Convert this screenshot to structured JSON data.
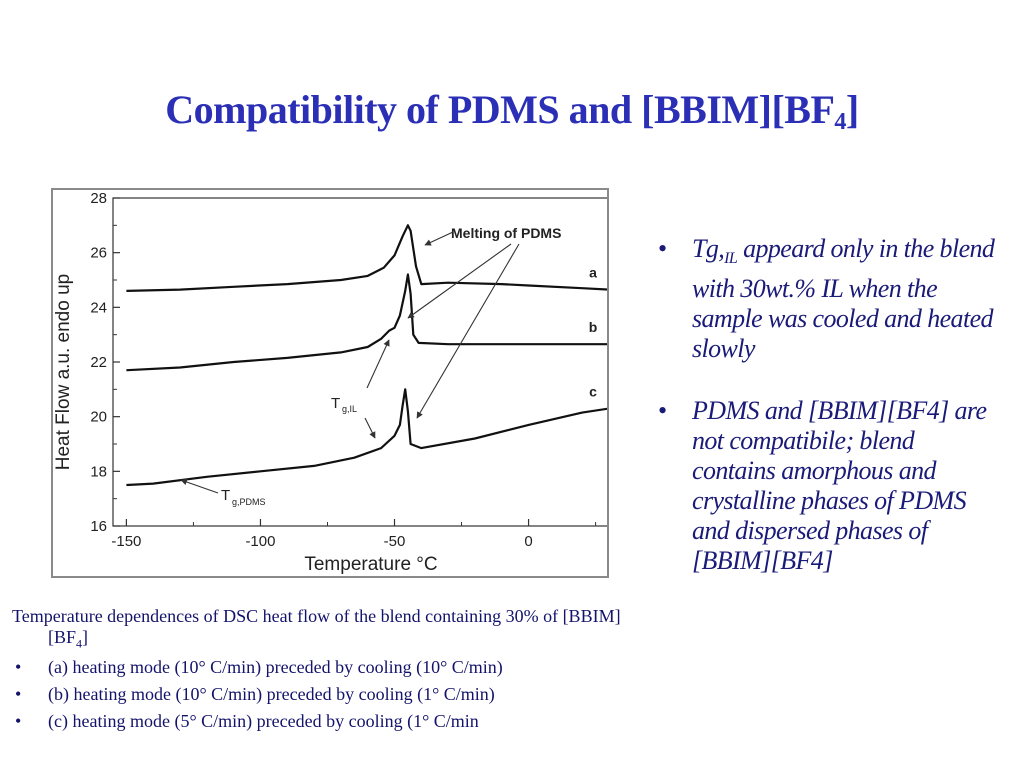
{
  "slide": {
    "title_main": "Compatibility of PDMS and [BBIM][BF",
    "title_sub": "4",
    "title_end": "]"
  },
  "chart_data": {
    "type": "line",
    "xlabel": "Temperature °C",
    "ylabel": "Heat Flow  a.u.   endo up",
    "xlim": [
      -155,
      30
    ],
    "ylim": [
      16,
      28
    ],
    "x_ticks": [
      "-150",
      "-100",
      "-50",
      "0"
    ],
    "y_ticks": [
      "16",
      "18",
      "20",
      "22",
      "24",
      "26",
      "28"
    ],
    "series": [
      {
        "name": "a",
        "points": [
          [
            -150,
            24.6
          ],
          [
            -130,
            24.65
          ],
          [
            -110,
            24.75
          ],
          [
            -90,
            24.85
          ],
          [
            -70,
            25.0
          ],
          [
            -60,
            25.15
          ],
          [
            -54,
            25.45
          ],
          [
            -50,
            25.9
          ],
          [
            -47,
            26.6
          ],
          [
            -45,
            27.0
          ],
          [
            -44,
            26.8
          ],
          [
            -42,
            25.5
          ],
          [
            -40,
            24.85
          ],
          [
            -30,
            24.9
          ],
          [
            -10,
            24.85
          ],
          [
            0,
            24.8
          ],
          [
            20,
            24.7
          ],
          [
            30,
            24.65
          ]
        ]
      },
      {
        "name": "b",
        "points": [
          [
            -150,
            21.7
          ],
          [
            -130,
            21.8
          ],
          [
            -110,
            22.0
          ],
          [
            -90,
            22.15
          ],
          [
            -70,
            22.35
          ],
          [
            -60,
            22.55
          ],
          [
            -55,
            22.85
          ],
          [
            -52,
            23.15
          ],
          [
            -50,
            23.25
          ],
          [
            -48,
            23.7
          ],
          [
            -46,
            24.6
          ],
          [
            -45,
            25.2
          ],
          [
            -44,
            24.5
          ],
          [
            -43,
            23.0
          ],
          [
            -41,
            22.7
          ],
          [
            -30,
            22.65
          ],
          [
            -10,
            22.65
          ],
          [
            10,
            22.65
          ],
          [
            30,
            22.65
          ]
        ]
      },
      {
        "name": "c",
        "points": [
          [
            -150,
            17.5
          ],
          [
            -140,
            17.55
          ],
          [
            -120,
            17.8
          ],
          [
            -100,
            18.0
          ],
          [
            -80,
            18.2
          ],
          [
            -65,
            18.5
          ],
          [
            -55,
            18.85
          ],
          [
            -50,
            19.3
          ],
          [
            -48,
            19.7
          ],
          [
            -47,
            20.4
          ],
          [
            -46,
            21.0
          ],
          [
            -45,
            20.2
          ],
          [
            -44,
            19.0
          ],
          [
            -40,
            18.85
          ],
          [
            -20,
            19.2
          ],
          [
            0,
            19.7
          ],
          [
            20,
            20.15
          ],
          [
            30,
            20.3
          ]
        ]
      }
    ],
    "annotations": {
      "melting": "Melting of PDMS",
      "tg_il_main": "T",
      "tg_il_sub": "g,IL",
      "tg_pdms_main": "T",
      "tg_pdms_sub": "g,PDMS"
    }
  },
  "caption": {
    "line1_main": "Temperature dependences of DSC heat flow of the blend containing 30% of [BBIM][BF",
    "line1_sub": "4",
    "line1_end": "]",
    "items": [
      "(a) heating mode (10°  C/min) preceded by cooling (10°  C/min)",
      "(b) heating mode (10°  C/min) preceded by cooling (1°  C/min)",
      "(c) heating mode (5°  C/min) preceded by cooling (1°  C/min"
    ]
  },
  "bullets": {
    "b1_a": "Tg,",
    "b1_sub": "IL",
    "b1_b": " appeard only in the blend with 30wt.% IL when the sample was cooled and heated slowly",
    "b2": "PDMS and [BBIM][BF4] are not compatibile; blend contains amorphous and crystalline phases of PDMS and dispersed phases of [BBIM][BF4]"
  }
}
